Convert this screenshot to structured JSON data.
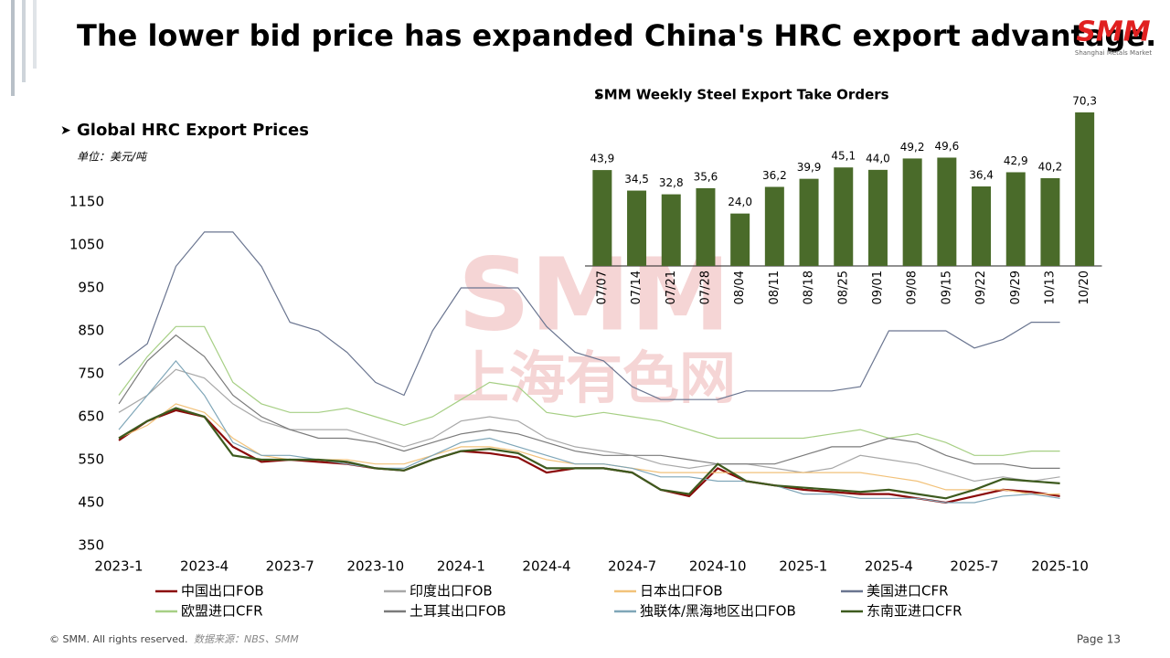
{
  "header": {
    "title": "The lower bid price has expanded China's HRC export advantage.",
    "logo": "SMM",
    "logo_subtitle": "Shanghai Metals Market"
  },
  "watermark": {
    "top": "SMM",
    "bottom": "上海有色网"
  },
  "footer": {
    "copyright": "© SMM. All rights reserved.",
    "source": "数据来源：NBS、SMM",
    "page": "Page 13"
  },
  "chart_data": [
    {
      "type": "line",
      "title": "Global HRC Export Prices",
      "unit": "单位：美元/吨",
      "categories": [
        "2023-1",
        null,
        null,
        "2023-4",
        null,
        null,
        "2023-7",
        null,
        null,
        "2023-10",
        null,
        null,
        "2024-1",
        null,
        null,
        "2024-4",
        null,
        null,
        "2024-7",
        null,
        null,
        "2024-10",
        null,
        null,
        "2025-1",
        null,
        null,
        "2025-4",
        null,
        null,
        "2025-7",
        null,
        null,
        "2025-10"
      ],
      "ylim": [
        350,
        1150
      ],
      "yticks": [
        350,
        450,
        550,
        650,
        750,
        850,
        950,
        1050,
        1150
      ],
      "series": [
        {
          "name": "中国出口FOB",
          "color": "#8b0a0a",
          "values": [
            595,
            640,
            665,
            650,
            580,
            545,
            550,
            545,
            540,
            530,
            525,
            550,
            570,
            565,
            555,
            520,
            530,
            530,
            520,
            480,
            465,
            530,
            500,
            490,
            480,
            475,
            470,
            470,
            460,
            450,
            465,
            480,
            475,
            465
          ]
        },
        {
          "name": "印度出口FOB",
          "color": "#a8a8a8",
          "values": [
            660,
            700,
            760,
            740,
            680,
            640,
            620,
            620,
            620,
            600,
            580,
            600,
            640,
            650,
            640,
            600,
            580,
            570,
            560,
            540,
            530,
            540,
            540,
            530,
            520,
            530,
            560,
            550,
            540,
            520,
            500,
            510,
            500,
            510
          ]
        },
        {
          "name": "日本出口FOB",
          "color": "#f2c27a",
          "values": [
            600,
            630,
            680,
            660,
            600,
            560,
            550,
            550,
            550,
            540,
            540,
            560,
            580,
            580,
            570,
            550,
            540,
            540,
            530,
            520,
            520,
            520,
            520,
            520,
            520,
            520,
            520,
            510,
            500,
            480,
            480,
            480,
            470,
            470
          ]
        },
        {
          "name": "美国进口CFR",
          "color": "#6a7590",
          "values": [
            770,
            820,
            1000,
            1080,
            1080,
            1000,
            870,
            850,
            800,
            730,
            700,
            850,
            950,
            950,
            950,
            860,
            800,
            780,
            720,
            690,
            690,
            690,
            710,
            710,
            710,
            710,
            720,
            850,
            850,
            850,
            810,
            830,
            870,
            870
          ]
        },
        {
          "name": "欧盟进口CFR",
          "color": "#a6cf84",
          "values": [
            700,
            790,
            860,
            860,
            730,
            680,
            660,
            660,
            670,
            650,
            630,
            650,
            690,
            730,
            720,
            660,
            650,
            660,
            650,
            640,
            620,
            600,
            600,
            600,
            600,
            610,
            620,
            600,
            610,
            590,
            560,
            560,
            570,
            570
          ]
        },
        {
          "name": "土耳其出口FOB",
          "color": "#7a7a7a",
          "values": [
            680,
            780,
            840,
            790,
            700,
            650,
            620,
            600,
            600,
            590,
            570,
            590,
            610,
            620,
            610,
            590,
            570,
            560,
            560,
            560,
            550,
            540,
            540,
            540,
            560,
            580,
            580,
            600,
            590,
            560,
            540,
            540,
            530,
            530
          ]
        },
        {
          "name": "独联体/黑海地区出口FOB",
          "color": "#7fa6b8",
          "values": [
            620,
            700,
            780,
            700,
            590,
            560,
            560,
            550,
            540,
            530,
            530,
            560,
            590,
            600,
            580,
            560,
            540,
            540,
            530,
            510,
            510,
            500,
            500,
            490,
            470,
            470,
            460,
            460,
            460,
            450,
            450,
            465,
            470,
            460
          ]
        },
        {
          "name": "东南亚进口CFR",
          "color": "#3d5a1e",
          "values": [
            600,
            640,
            670,
            650,
            560,
            550,
            550,
            550,
            545,
            530,
            525,
            550,
            570,
            575,
            565,
            530,
            530,
            530,
            520,
            480,
            470,
            540,
            500,
            490,
            485,
            480,
            475,
            480,
            470,
            460,
            480,
            505,
            500,
            495
          ]
        }
      ]
    },
    {
      "type": "bar",
      "title": "SMM Weekly Steel Export Take Orders",
      "color": "#4a6b2a",
      "categories": [
        "07/07",
        "07/14",
        "07/21",
        "07/28",
        "08/04",
        "08/11",
        "08/18",
        "08/25",
        "09/01",
        "09/08",
        "09/15",
        "09/22",
        "09/29",
        "10/13",
        "10/20"
      ],
      "values": [
        43.9,
        34.5,
        32.8,
        35.6,
        24.0,
        36.2,
        39.9,
        45.1,
        44.0,
        49.2,
        49.6,
        36.4,
        42.9,
        40.2,
        70.3
      ],
      "value_labels": [
        "43,9",
        "34,5",
        "32,8",
        "35,6",
        "24,0",
        "36,2",
        "39,9",
        "45,1",
        "44,0",
        "49,2",
        "49,6",
        "36,4",
        "42,9",
        "40,2",
        "70,3"
      ]
    }
  ]
}
